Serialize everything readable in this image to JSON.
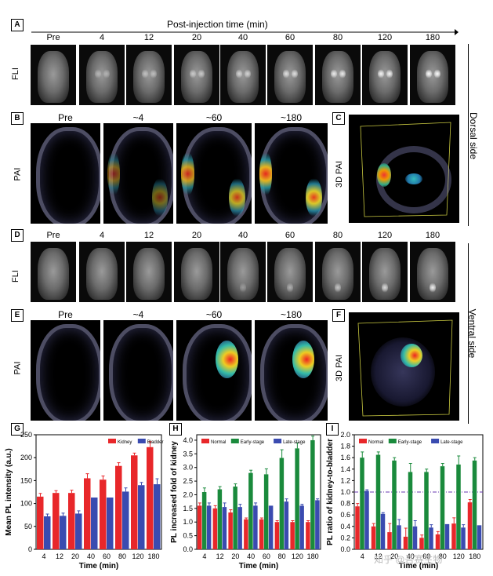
{
  "header": {
    "title": "Post-injection time (min)"
  },
  "panels": {
    "A": "A",
    "B": "B",
    "C": "C",
    "D": "D",
    "E": "E",
    "F": "F",
    "G": "G",
    "H": "H",
    "I": "I"
  },
  "row_labels": {
    "fli": "FLI",
    "pai": "PAI",
    "pai3d": "3D PAI"
  },
  "side_labels": {
    "dorsal": "Dorsal side",
    "ventral": "Ventral side"
  },
  "fli_times": [
    "Pre",
    "4",
    "12",
    "20",
    "40",
    "60",
    "80",
    "120",
    "180"
  ],
  "pai_times": [
    "Pre",
    "~4",
    "~60",
    "~180"
  ],
  "watermark": "知乎 @吾赛生物",
  "colors": {
    "red": "#e8272a",
    "green": "#1a8a3c",
    "blue": "#3a4bb0"
  },
  "chart_data": [
    {
      "type": "bar",
      "panel": "G",
      "categories": [
        "4",
        "12",
        "20",
        "40",
        "60",
        "80",
        "120",
        "180"
      ],
      "series": [
        {
          "name": "Kidney",
          "values": [
            115,
            123,
            123,
            155,
            152,
            182,
            205,
            223
          ],
          "errors": [
            7,
            5,
            6,
            10,
            8,
            7,
            5,
            12
          ]
        },
        {
          "name": "Bladder",
          "values": [
            72,
            73,
            78,
            113,
            113,
            126,
            140,
            142
          ],
          "errors": [
            5,
            6,
            6,
            0,
            0,
            8,
            6,
            12
          ]
        }
      ],
      "xlabel": "Time (min)",
      "ylabel": "Mean PL intensity (a.u.)",
      "ylim": [
        0,
        250
      ],
      "yticks": [
        0,
        50,
        100,
        150,
        200,
        250
      ]
    },
    {
      "type": "bar",
      "panel": "H",
      "categories": [
        "4",
        "12",
        "20",
        "40",
        "60",
        "80",
        "120",
        "180"
      ],
      "series": [
        {
          "name": "Normal",
          "values": [
            1.6,
            1.5,
            1.35,
            1.1,
            1.1,
            1.0,
            1.0,
            1.0
          ],
          "errors": [
            0.1,
            0.1,
            0.1,
            0.05,
            0.05,
            0.05,
            0.05,
            0.05
          ]
        },
        {
          "name": "Early-stage",
          "values": [
            2.1,
            2.2,
            2.3,
            2.8,
            2.75,
            3.35,
            3.7,
            4.0
          ],
          "errors": [
            0.15,
            0.1,
            0.1,
            0.1,
            0.2,
            0.3,
            0.2,
            0.15
          ]
        },
        {
          "name": "Late-stage",
          "values": [
            1.6,
            1.55,
            1.55,
            1.6,
            1.6,
            1.75,
            1.6,
            1.8
          ],
          "errors": [
            0.1,
            0.15,
            0.1,
            0.1,
            0.0,
            0.1,
            0.05,
            0.05
          ]
        }
      ],
      "xlabel": "Time (min)",
      "ylabel": "PL increased fold of kidney",
      "ylim": [
        0,
        4.2
      ],
      "yticks": [
        0.0,
        0.5,
        1.0,
        1.5,
        2.0,
        2.5,
        3.0,
        3.5,
        4.0
      ]
    },
    {
      "type": "bar",
      "panel": "I",
      "categories": [
        "4",
        "12",
        "20",
        "40",
        "60",
        "80",
        "120",
        "180"
      ],
      "series": [
        {
          "name": "Normal",
          "values": [
            0.75,
            0.4,
            0.3,
            0.22,
            0.2,
            0.26,
            0.45,
            0.82
          ],
          "errors": [
            0.05,
            0.05,
            0.15,
            0.15,
            0.05,
            0.05,
            0.1,
            0.05
          ]
        },
        {
          "name": "Early-stage",
          "values": [
            1.6,
            1.65,
            1.55,
            1.35,
            1.35,
            1.45,
            1.48,
            1.55
          ],
          "errors": [
            0.1,
            0.05,
            0.05,
            0.15,
            0.05,
            0.05,
            0.15,
            0.05
          ]
        },
        {
          "name": "Late-stage",
          "values": [
            1.02,
            0.62,
            0.42,
            0.4,
            0.38,
            0.44,
            0.38,
            0.42
          ],
          "errors": [
            0.02,
            0.02,
            0.1,
            0.1,
            0.05,
            0.0,
            0.05,
            0.0
          ]
        }
      ],
      "reference_line": 1.0,
      "xlabel": "Time (min)",
      "ylabel": "PL ratio of kidney-to-bladder",
      "ylim": [
        0,
        2.0
      ],
      "yticks": [
        0.0,
        0.2,
        0.4,
        0.6,
        0.8,
        1.0,
        1.2,
        1.4,
        1.6,
        1.8,
        2.0
      ]
    }
  ]
}
